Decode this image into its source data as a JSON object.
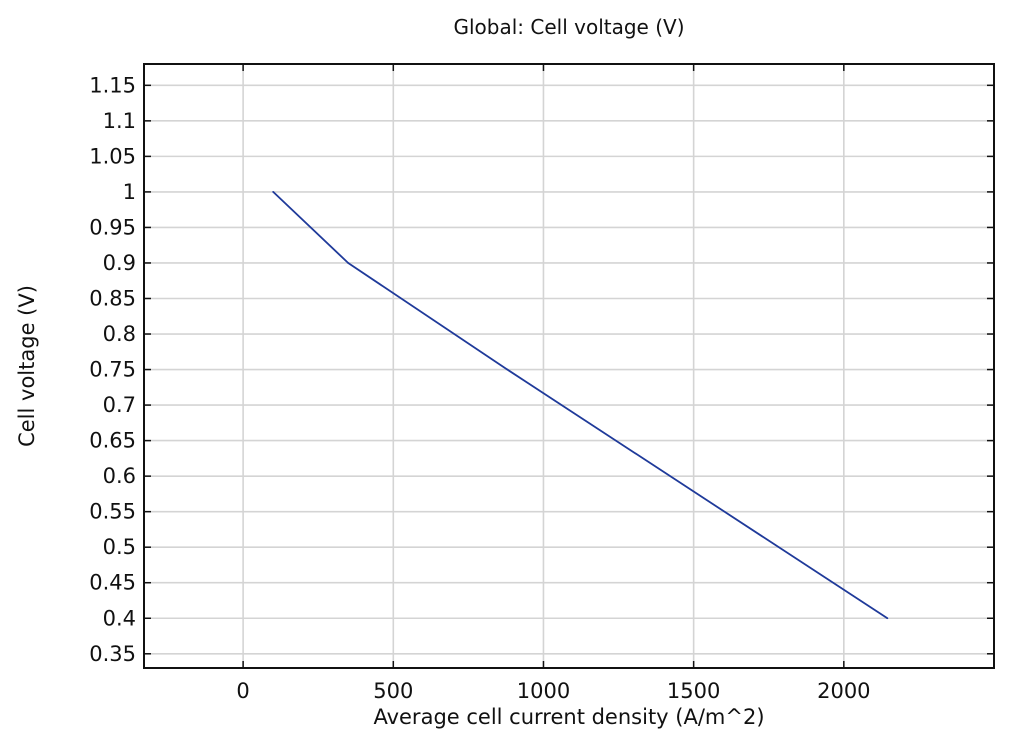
{
  "chart_data": {
    "type": "line",
    "title": "Global: Cell voltage (V)",
    "xlabel": "Average cell current density (A/m^2)",
    "ylabel": "Cell voltage (V)",
    "xlim": [
      -330,
      2500
    ],
    "ylim": [
      0.33,
      1.18
    ],
    "x_ticks": [
      0,
      500,
      1000,
      1500,
      2000
    ],
    "x_tick_labels": [
      "0",
      "500",
      "1000",
      "1500",
      "2000"
    ],
    "y_ticks": [
      0.35,
      0.4,
      0.45,
      0.5,
      0.55,
      0.6,
      0.65,
      0.7,
      0.75,
      0.8,
      0.85,
      0.9,
      0.95,
      1.0,
      1.05,
      1.1,
      1.15
    ],
    "y_tick_labels": [
      "0.35",
      "0.4",
      "0.45",
      "0.5",
      "0.55",
      "0.6",
      "0.65",
      "0.7",
      "0.75",
      "0.8",
      "0.85",
      "0.9",
      "0.95",
      "1",
      "1.05",
      "1.1",
      "1.15"
    ],
    "grid": true,
    "series": [
      {
        "color": "#1f3a9a",
        "x": [
          100,
          350,
          880,
          2145
        ],
        "y": [
          1.0,
          0.9,
          0.75,
          0.4
        ]
      }
    ]
  }
}
